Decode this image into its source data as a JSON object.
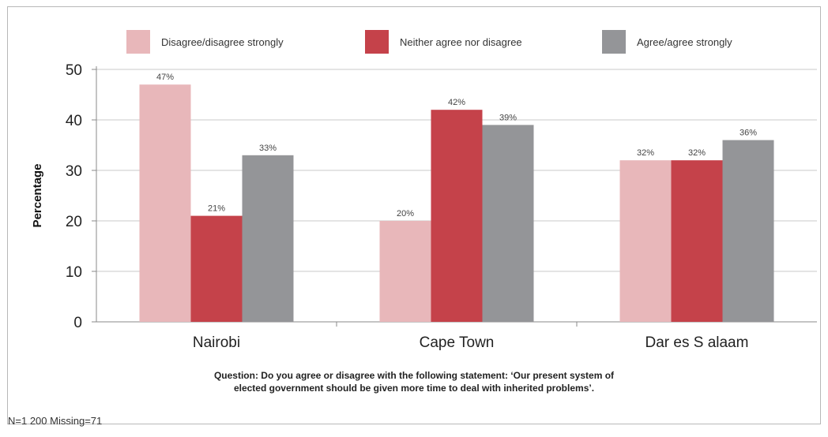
{
  "chart_data": {
    "type": "bar",
    "categories": [
      "Nairobi",
      "Cape Town",
      "Dar es S  alaam"
    ],
    "series": [
      {
        "name": "Disagree/disagree strongly",
        "color": "#e8b7ba",
        "values": [
          47,
          20,
          32
        ],
        "labels": [
          "47%",
          "20%",
          "32%"
        ]
      },
      {
        "name": "Neither agree nor disagree",
        "color": "#c5424a",
        "values": [
          21,
          42,
          32
        ],
        "labels": [
          "21%",
          "42%",
          "32%"
        ]
      },
      {
        "name": "Agree/agree strongly",
        "color": "#949598",
        "values": [
          33,
          39,
          36
        ],
        "labels": [
          "33%",
          "39%",
          "36%"
        ]
      }
    ],
    "ylabel": "Percentage",
    "ylim": [
      0,
      50
    ],
    "yticks": [
      "0",
      "10",
      "20",
      "30",
      "40",
      "50"
    ],
    "grid": true,
    "legend": "top"
  },
  "question": {
    "line1": "Question: Do you agree or disagree with the following statement: ‘Our present system of",
    "line2": "elected government should be given more time to deal with inherited problems’."
  },
  "note": "N=1 200 Missing=71"
}
